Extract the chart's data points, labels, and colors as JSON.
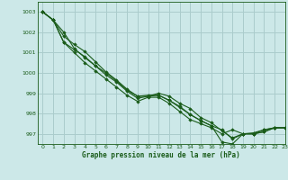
{
  "bg_color": "#cce8e8",
  "grid_color": "#aacccc",
  "line_color": "#1a5c1a",
  "marker_color": "#1a5c1a",
  "xlabel": "Graphe pression niveau de la mer (hPa)",
  "xlim": [
    -0.5,
    23
  ],
  "ylim": [
    996.5,
    1003.5
  ],
  "yticks": [
    997,
    998,
    999,
    1000,
    1001,
    1002,
    1003
  ],
  "xticks": [
    0,
    1,
    2,
    3,
    4,
    5,
    6,
    7,
    8,
    9,
    10,
    11,
    12,
    13,
    14,
    15,
    16,
    17,
    18,
    19,
    20,
    21,
    22,
    23
  ],
  "series": [
    [
      1003.0,
      1002.6,
      1001.5,
      1001.15,
      1000.8,
      1000.35,
      1000.0,
      999.6,
      999.15,
      998.85,
      998.85,
      999.0,
      998.85,
      998.5,
      998.25,
      997.8,
      997.55,
      997.15,
      996.8,
      997.0,
      997.05,
      997.2,
      997.3,
      997.3
    ],
    [
      1003.0,
      1002.6,
      1002.0,
      1001.2,
      1000.75,
      1000.35,
      999.9,
      999.55,
      999.1,
      998.75,
      998.85,
      998.9,
      998.65,
      998.3,
      997.95,
      997.65,
      997.4,
      997.2,
      996.75,
      997.0,
      997.0,
      997.1,
      997.3,
      997.3
    ],
    [
      1003.0,
      1002.6,
      1001.5,
      1001.0,
      1000.5,
      1000.1,
      999.7,
      999.3,
      998.9,
      998.6,
      998.8,
      998.8,
      998.5,
      998.1,
      997.7,
      997.5,
      997.3,
      997.0,
      997.2,
      997.0,
      997.0,
      997.2,
      997.3,
      997.3
    ],
    [
      1003.0,
      1002.6,
      1001.8,
      1001.4,
      1001.05,
      1000.55,
      1000.05,
      999.65,
      999.2,
      998.85,
      998.9,
      998.9,
      998.65,
      998.35,
      997.95,
      997.65,
      997.4,
      996.6,
      996.5,
      997.0,
      997.0,
      997.1,
      997.3,
      997.3
    ]
  ]
}
